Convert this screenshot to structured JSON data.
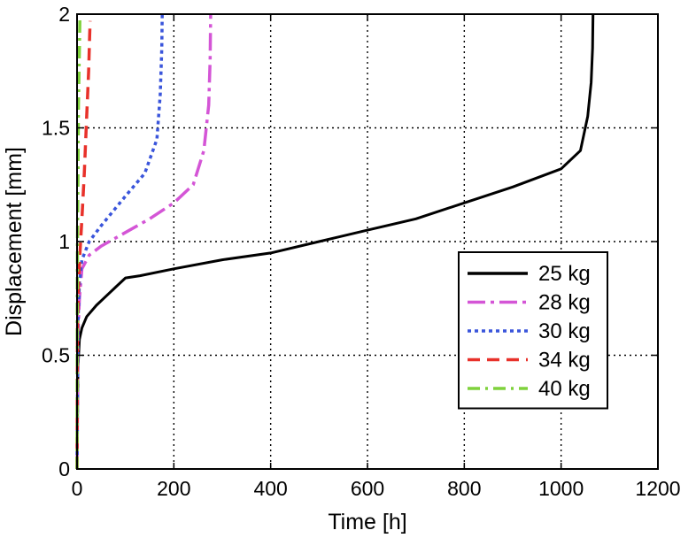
{
  "chart_data": {
    "type": "line",
    "title": "",
    "xlabel": "Time [h]",
    "ylabel": "Displacement [mm]",
    "xlim": [
      0,
      1200
    ],
    "ylim": [
      0,
      2
    ],
    "xticks": [
      0,
      200,
      400,
      600,
      800,
      1000,
      1200
    ],
    "yticks": [
      0,
      0.5,
      1,
      1.5,
      2
    ],
    "ytick_labels": [
      "0",
      "0.5",
      "1",
      "1.5",
      "2"
    ],
    "grid": true,
    "legend_position": "bottom-right",
    "series": [
      {
        "name": "25 kg",
        "color": "#000000",
        "style": "solid",
        "x": [
          0,
          2,
          5,
          10,
          20,
          40,
          60,
          80,
          100,
          130,
          200,
          300,
          400,
          500,
          600,
          700,
          800,
          900,
          1000,
          1040,
          1055,
          1062,
          1065,
          1066
        ],
        "y": [
          0,
          0.45,
          0.57,
          0.62,
          0.67,
          0.72,
          0.76,
          0.8,
          0.84,
          0.85,
          0.88,
          0.92,
          0.95,
          1.0,
          1.05,
          1.1,
          1.17,
          1.24,
          1.32,
          1.4,
          1.55,
          1.7,
          1.85,
          2.0
        ]
      },
      {
        "name": "28 kg",
        "color": "#d455d6",
        "style": "dashdot",
        "x": [
          0,
          2,
          5,
          10,
          25,
          50,
          100,
          150,
          200,
          240,
          262,
          272,
          275,
          276
        ],
        "y": [
          0,
          0.6,
          0.75,
          0.88,
          0.94,
          0.98,
          1.04,
          1.1,
          1.17,
          1.25,
          1.4,
          1.6,
          1.8,
          2.0
        ],
        "dash": "20,6,4,6"
      },
      {
        "name": "30 kg",
        "color": "#3a55db",
        "style": "dotted",
        "x": [
          0,
          2,
          5,
          10,
          25,
          50,
          100,
          140,
          165,
          172,
          175,
          176
        ],
        "y": [
          0,
          0.65,
          0.82,
          0.92,
          1.0,
          1.07,
          1.2,
          1.3,
          1.45,
          1.65,
          1.85,
          2.0
        ],
        "dash": "4,4"
      },
      {
        "name": "34 kg",
        "color": "#e8312a",
        "style": "dashed",
        "x": [
          0,
          1,
          3,
          6,
          10,
          15,
          20,
          24,
          26,
          27
        ],
        "y": [
          0,
          0.6,
          0.8,
          0.95,
          1.1,
          1.3,
          1.55,
          1.75,
          1.9,
          1.97
        ],
        "dash": "14,8"
      },
      {
        "name": "40 kg",
        "color": "#7fd23c",
        "style": "dashdot",
        "x": [
          0,
          0.5,
          1,
          2,
          3,
          5,
          6
        ],
        "y": [
          0,
          0.7,
          1.0,
          1.3,
          1.6,
          1.85,
          2.0
        ],
        "dash": "14,6,3,6"
      }
    ]
  }
}
